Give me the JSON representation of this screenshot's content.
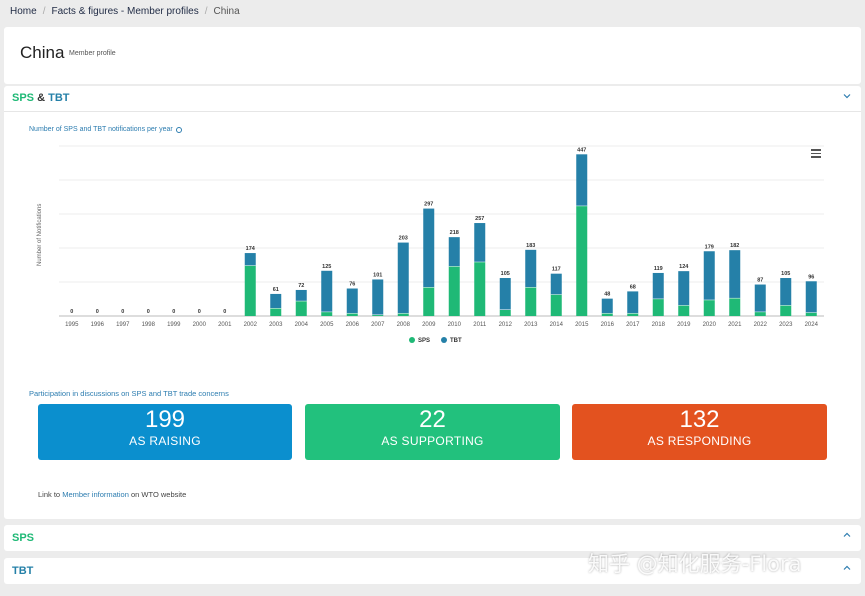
{
  "breadcrumb": {
    "home": "Home",
    "section": "Facts & figures - Member profiles",
    "current": "China"
  },
  "profile": {
    "title": "China",
    "subtitle": "Member profile"
  },
  "panel": {
    "sps_label": "SPS",
    "amp": "&",
    "tbt_label": "TBT"
  },
  "chart_data": {
    "type": "bar",
    "stacked": true,
    "title": "Number of SPS and TBT notifications per year",
    "ylabel": "Number of Notifications",
    "xlabel": "",
    "categories": [
      "1995",
      "1996",
      "1997",
      "1998",
      "1999",
      "2000",
      "2001",
      "2002",
      "2003",
      "2004",
      "2005",
      "2006",
      "2007",
      "2008",
      "2009",
      "2010",
      "2011",
      "2012",
      "2013",
      "2014",
      "2015",
      "2016",
      "2017",
      "2018",
      "2019",
      "2020",
      "2021",
      "2022",
      "2023",
      "2024"
    ],
    "totals": [
      0,
      0,
      0,
      0,
      0,
      0,
      0,
      174,
      61,
      72,
      125,
      76,
      101,
      203,
      297,
      218,
      257,
      105,
      183,
      117,
      447,
      48,
      68,
      119,
      124,
      179,
      182,
      87,
      105,
      96
    ],
    "series": [
      {
        "name": "SPS",
        "color": "#1fb976",
        "values": [
          0,
          0,
          0,
          0,
          0,
          0,
          0,
          140,
          22,
          42,
          12,
          8,
          4,
          8,
          80,
          138,
          150,
          18,
          80,
          60,
          305,
          8,
          8,
          48,
          30,
          45,
          50,
          12,
          30,
          10
        ]
      },
      {
        "name": "TBT",
        "color": "#2580a8",
        "values": [
          0,
          0,
          0,
          0,
          0,
          0,
          0,
          34,
          39,
          30,
          113,
          68,
          97,
          195,
          217,
          80,
          107,
          87,
          103,
          57,
          142,
          40,
          60,
          71,
          94,
          134,
          132,
          75,
          75,
          86
        ]
      }
    ],
    "ylim": [
      0,
      470
    ],
    "grid": true,
    "legend": "bottom-center"
  },
  "participation": {
    "title": "Participation in discussions on SPS and TBT trade concerns",
    "raising": {
      "value": "199",
      "label": "AS RAISING"
    },
    "supporting": {
      "value": "22",
      "label": "AS SUPPORTING"
    },
    "responding": {
      "value": "132",
      "label": "AS RESPONDING"
    }
  },
  "link": {
    "prefix": "Link to",
    "text": "Member information",
    "suffix": "on WTO website"
  },
  "sections": {
    "sps": "SPS",
    "tbt": "TBT"
  },
  "watermark": "知乎 @知化服务-Flora",
  "icons": {
    "chevron": "chevron-icon",
    "menu": "hamburger-menu-icon",
    "info": "info-icon"
  }
}
